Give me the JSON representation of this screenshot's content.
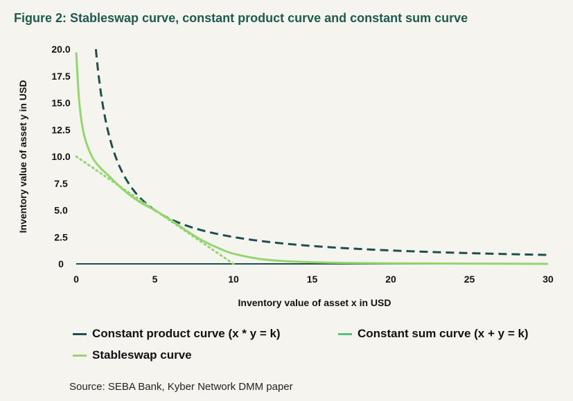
{
  "title": "Figure 2: Stableswap curve, constant product curve and constant sum curve",
  "source": "Source: SEBA Bank, Kyber Network DMM paper",
  "colors": {
    "product": "#1d4f4f",
    "sum": "#5cc27a",
    "stableswap": "#93d66e",
    "background": "#f5f4ee"
  },
  "chart_data": {
    "type": "line",
    "title": "Figure 2: Stableswap curve, constant product curve and constant sum curve",
    "xlabel": "Inventory value of asset x in USD",
    "ylabel": "Inventory value of asset y in USD",
    "xlim": [
      0,
      30
    ],
    "ylim": [
      0,
      20
    ],
    "xticks": [
      "0",
      "5",
      "10",
      "15",
      "20",
      "25",
      "30"
    ],
    "yticks": [
      "0",
      "2.5",
      "5.0",
      "7.5",
      "10.0",
      "12.5",
      "15.0",
      "17.5",
      "20.0"
    ],
    "legend_position": "bottom",
    "series": [
      {
        "name": "Constant product curve (x * y = k)",
        "style": "dashed",
        "k": 25,
        "x": [
          1.25,
          1.5,
          2,
          2.5,
          3,
          3.5,
          4,
          5,
          6,
          7,
          8,
          10,
          12,
          15,
          20,
          25,
          30
        ],
        "y": [
          20,
          16.67,
          12.5,
          10,
          8.33,
          7.14,
          6.25,
          5,
          4.17,
          3.57,
          3.13,
          2.5,
          2.08,
          1.67,
          1.25,
          1,
          0.83
        ]
      },
      {
        "name": "Constant sum curve (x + y = k)",
        "style": "dotted",
        "k": 10,
        "x": [
          0,
          10
        ],
        "y": [
          10,
          0
        ]
      },
      {
        "name": "Stableswap curve",
        "style": "solid",
        "x": [
          0,
          0.2,
          0.5,
          1,
          1.5,
          2,
          3,
          4,
          5,
          6,
          7,
          8,
          9,
          10,
          12,
          15,
          20,
          30
        ],
        "y": [
          19.7,
          15,
          12,
          10,
          9,
          8.3,
          6.9,
          5.8,
          5,
          4.1,
          3.1,
          2.2,
          1.5,
          0.95,
          0.4,
          0.15,
          0.05,
          0
        ]
      }
    ]
  }
}
